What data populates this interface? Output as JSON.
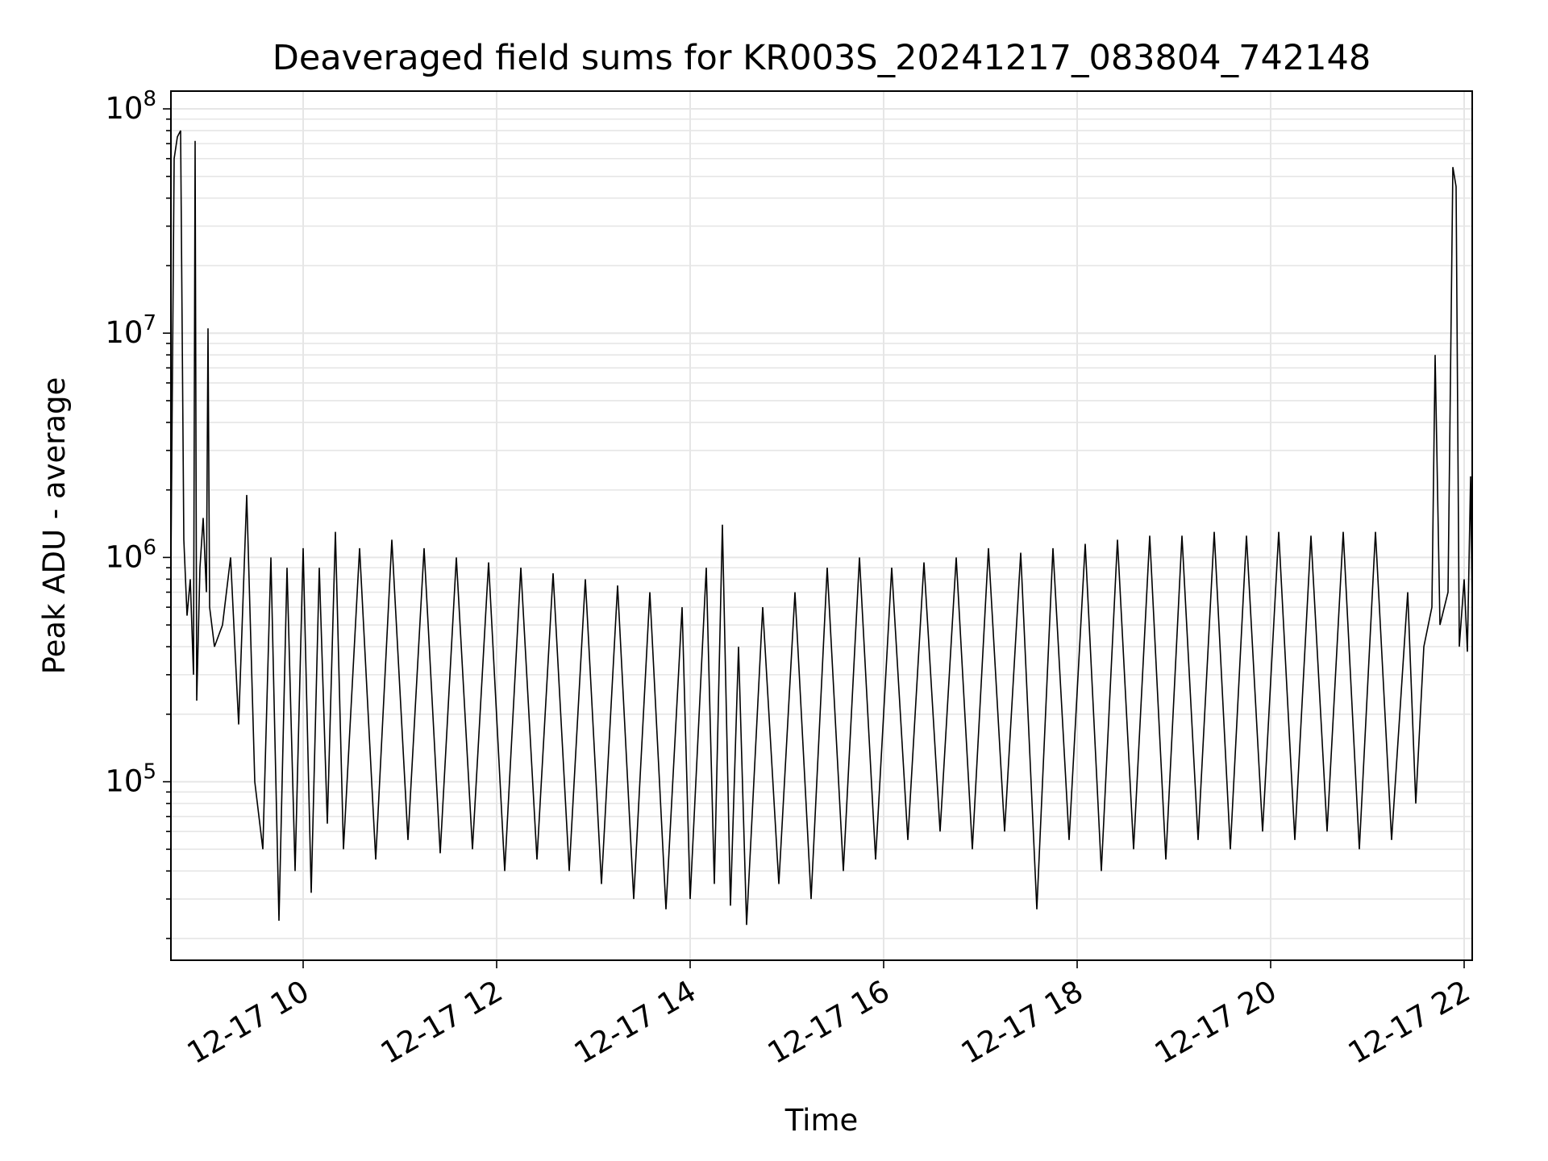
{
  "chart_data": {
    "type": "line",
    "title": "Deaveraged field sums for KR003S_20241217_083804_742148",
    "xlabel": "Time",
    "ylabel": "Peak ADU - average",
    "yscale": "log",
    "grid": true,
    "line_color": "#000000",
    "grid_color": "#e6e6e6",
    "xlim": [
      "2024-12-17 08:38",
      "2024-12-17 22:05"
    ],
    "ylim": [
      16000,
      120000000
    ],
    "x_ticks": [
      {
        "value": "2024-12-17 10:00",
        "label": "12-17 10"
      },
      {
        "value": "2024-12-17 12:00",
        "label": "12-17 12"
      },
      {
        "value": "2024-12-17 14:00",
        "label": "12-17 14"
      },
      {
        "value": "2024-12-17 16:00",
        "label": "12-17 16"
      },
      {
        "value": "2024-12-17 18:00",
        "label": "12-17 18"
      },
      {
        "value": "2024-12-17 20:00",
        "label": "12-17 20"
      },
      {
        "value": "2024-12-17 22:00",
        "label": "12-17 22"
      }
    ],
    "y_ticks": [
      {
        "value": 100000,
        "base": "10",
        "exp": "5"
      },
      {
        "value": 1000000,
        "base": "10",
        "exp": "6"
      },
      {
        "value": 10000000,
        "base": "10",
        "exp": "7"
      },
      {
        "value": 100000000,
        "base": "10",
        "exp": "8"
      }
    ],
    "series": [
      {
        "points": [
          [
            "08:38",
            900000
          ],
          [
            "08:40",
            60000000
          ],
          [
            "08:42",
            75000000
          ],
          [
            "08:44",
            80000000
          ],
          [
            "08:46",
            1200000
          ],
          [
            "08:48",
            550000
          ],
          [
            "08:50",
            800000
          ],
          [
            "08:52",
            300000
          ],
          [
            "08:53",
            72000000
          ],
          [
            "08:54",
            230000
          ],
          [
            "08:56",
            900000
          ],
          [
            "08:58",
            1500000
          ],
          [
            "09:00",
            700000
          ],
          [
            "09:01",
            10500000
          ],
          [
            "09:02",
            600000
          ],
          [
            "09:05",
            400000
          ],
          [
            "09:10",
            500000
          ],
          [
            "09:15",
            1000000
          ],
          [
            "09:20",
            180000
          ],
          [
            "09:25",
            1900000
          ],
          [
            "09:30",
            100000
          ],
          [
            "09:35",
            50000
          ],
          [
            "09:40",
            1000000
          ],
          [
            "09:45",
            24000
          ],
          [
            "09:50",
            900000
          ],
          [
            "09:55",
            40000
          ],
          [
            "10:00",
            1100000
          ],
          [
            "10:05",
            32000
          ],
          [
            "10:10",
            900000
          ],
          [
            "10:15",
            65000
          ],
          [
            "10:20",
            1300000
          ],
          [
            "10:25",
            50000
          ],
          [
            "10:35",
            1100000
          ],
          [
            "10:45",
            45000
          ],
          [
            "10:55",
            1200000
          ],
          [
            "11:05",
            55000
          ],
          [
            "11:15",
            1100000
          ],
          [
            "11:25",
            48000
          ],
          [
            "11:35",
            1000000
          ],
          [
            "11:45",
            50000
          ],
          [
            "11:55",
            950000
          ],
          [
            "12:05",
            40000
          ],
          [
            "12:15",
            900000
          ],
          [
            "12:25",
            45000
          ],
          [
            "12:35",
            850000
          ],
          [
            "12:45",
            40000
          ],
          [
            "12:55",
            800000
          ],
          [
            "13:05",
            35000
          ],
          [
            "13:15",
            750000
          ],
          [
            "13:25",
            30000
          ],
          [
            "13:35",
            700000
          ],
          [
            "13:45",
            27000
          ],
          [
            "13:55",
            600000
          ],
          [
            "14:00",
            30000
          ],
          [
            "14:10",
            900000
          ],
          [
            "14:15",
            35000
          ],
          [
            "14:20",
            1400000
          ],
          [
            "14:25",
            28000
          ],
          [
            "14:30",
            400000
          ],
          [
            "14:35",
            23000
          ],
          [
            "14:45",
            600000
          ],
          [
            "14:55",
            35000
          ],
          [
            "15:05",
            700000
          ],
          [
            "15:15",
            30000
          ],
          [
            "15:25",
            900000
          ],
          [
            "15:35",
            40000
          ],
          [
            "15:45",
            1000000
          ],
          [
            "15:55",
            45000
          ],
          [
            "16:05",
            900000
          ],
          [
            "16:15",
            55000
          ],
          [
            "16:25",
            950000
          ],
          [
            "16:35",
            60000
          ],
          [
            "16:45",
            1000000
          ],
          [
            "16:55",
            50000
          ],
          [
            "17:05",
            1100000
          ],
          [
            "17:15",
            60000
          ],
          [
            "17:25",
            1050000
          ],
          [
            "17:35",
            27000
          ],
          [
            "17:45",
            1100000
          ],
          [
            "17:55",
            55000
          ],
          [
            "18:05",
            1150000
          ],
          [
            "18:15",
            40000
          ],
          [
            "18:25",
            1200000
          ],
          [
            "18:35",
            50000
          ],
          [
            "18:45",
            1250000
          ],
          [
            "18:55",
            45000
          ],
          [
            "19:05",
            1250000
          ],
          [
            "19:15",
            55000
          ],
          [
            "19:25",
            1300000
          ],
          [
            "19:35",
            50000
          ],
          [
            "19:45",
            1250000
          ],
          [
            "19:55",
            60000
          ],
          [
            "20:05",
            1300000
          ],
          [
            "20:15",
            55000
          ],
          [
            "20:25",
            1250000
          ],
          [
            "20:35",
            60000
          ],
          [
            "20:45",
            1300000
          ],
          [
            "20:55",
            50000
          ],
          [
            "21:05",
            1300000
          ],
          [
            "21:15",
            55000
          ],
          [
            "21:25",
            700000
          ],
          [
            "21:30",
            80000
          ],
          [
            "21:35",
            400000
          ],
          [
            "21:40",
            600000
          ],
          [
            "21:42",
            8000000
          ],
          [
            "21:45",
            500000
          ],
          [
            "21:50",
            700000
          ],
          [
            "21:53",
            55000000
          ],
          [
            "21:55",
            45000000
          ],
          [
            "21:57",
            400000
          ],
          [
            "22:00",
            800000
          ],
          [
            "22:02",
            380000
          ],
          [
            "22:04",
            2300000
          ],
          [
            "22:05",
            600000
          ]
        ]
      }
    ]
  }
}
